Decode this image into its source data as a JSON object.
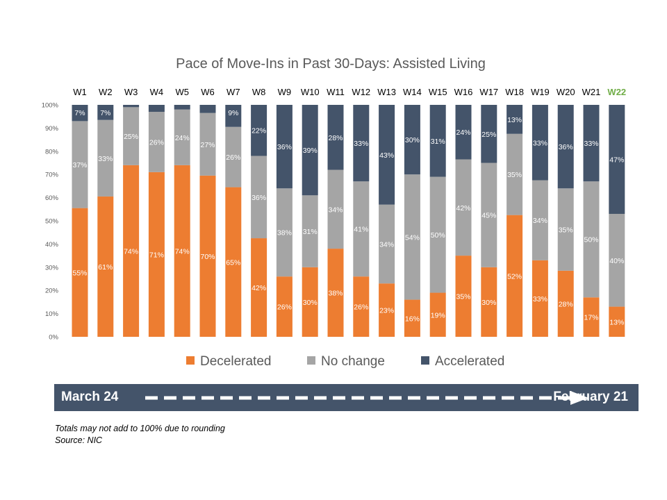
{
  "chart_data": {
    "type": "bar",
    "stacked": true,
    "title": "Pace of Move-Ins in Past 30-Days: Assisted Living",
    "categories": [
      "W1",
      "W2",
      "W3",
      "W4",
      "W5",
      "W6",
      "W7",
      "W8",
      "W9",
      "W10",
      "W11",
      "W12",
      "W13",
      "W14",
      "W15",
      "W16",
      "W17",
      "W18",
      "W19",
      "W20",
      "W21",
      "W22"
    ],
    "highlight_category": "W22",
    "ylim": [
      0,
      100
    ],
    "y_ticks": [
      "0%",
      "10%",
      "20%",
      "30%",
      "40%",
      "50%",
      "60%",
      "70%",
      "80%",
      "90%",
      "100%"
    ],
    "legend_position": "bottom",
    "series": [
      {
        "name": "Decelerated",
        "color": "#ED7D31",
        "values": [
          55.5,
          60.5,
          74,
          71,
          74,
          69.5,
          64.5,
          42.5,
          26,
          30,
          38,
          26,
          23,
          16,
          19,
          35,
          30,
          52.5,
          33,
          28.5,
          17,
          13
        ],
        "labels": [
          "55%",
          "61%",
          "74%",
          "71%",
          "74%",
          "70%",
          "65%",
          "42%",
          "26%",
          "30%",
          "38%",
          "26%",
          "23%",
          "16%",
          "19%",
          "35%",
          "30%",
          "52%",
          "33%",
          "28%",
          "17%",
          "13%"
        ]
      },
      {
        "name": "No change",
        "color": "#A5A5A5",
        "values": [
          37.5,
          33,
          25,
          26,
          24,
          27,
          26,
          35.5,
          38,
          31,
          34,
          41,
          34,
          54,
          50,
          41.5,
          45,
          35,
          34.5,
          35.5,
          50,
          40
        ],
        "labels": [
          "37%",
          "33%",
          "25%",
          "26%",
          "24%",
          "27%",
          "26%",
          "36%",
          "38%",
          "31%",
          "34%",
          "41%",
          "34%",
          "54%",
          "50%",
          "42%",
          "45%",
          "35%",
          "34%",
          "35%",
          "50%",
          "40%"
        ]
      },
      {
        "name": "Accelerated",
        "color": "#44546A",
        "values": [
          7,
          6.5,
          1,
          3,
          2,
          3.5,
          9.5,
          22,
          36,
          39,
          28,
          33,
          43,
          30,
          31,
          23.5,
          25,
          12.5,
          32.5,
          36,
          33,
          47
        ],
        "labels": [
          "7%",
          "7%",
          "",
          "",
          "",
          "",
          "9%",
          "22%",
          "36%",
          "39%",
          "28%",
          "33%",
          "43%",
          "30%",
          "31%",
          "24%",
          "25%",
          "13%",
          "33%",
          "36%",
          "33%",
          "47%"
        ]
      }
    ]
  },
  "timeline": {
    "start": "March 24",
    "end": "February 21",
    "color": "#44546A"
  },
  "notes": [
    "Totals may not add to 100% due to rounding",
    "Source: NIC"
  ]
}
